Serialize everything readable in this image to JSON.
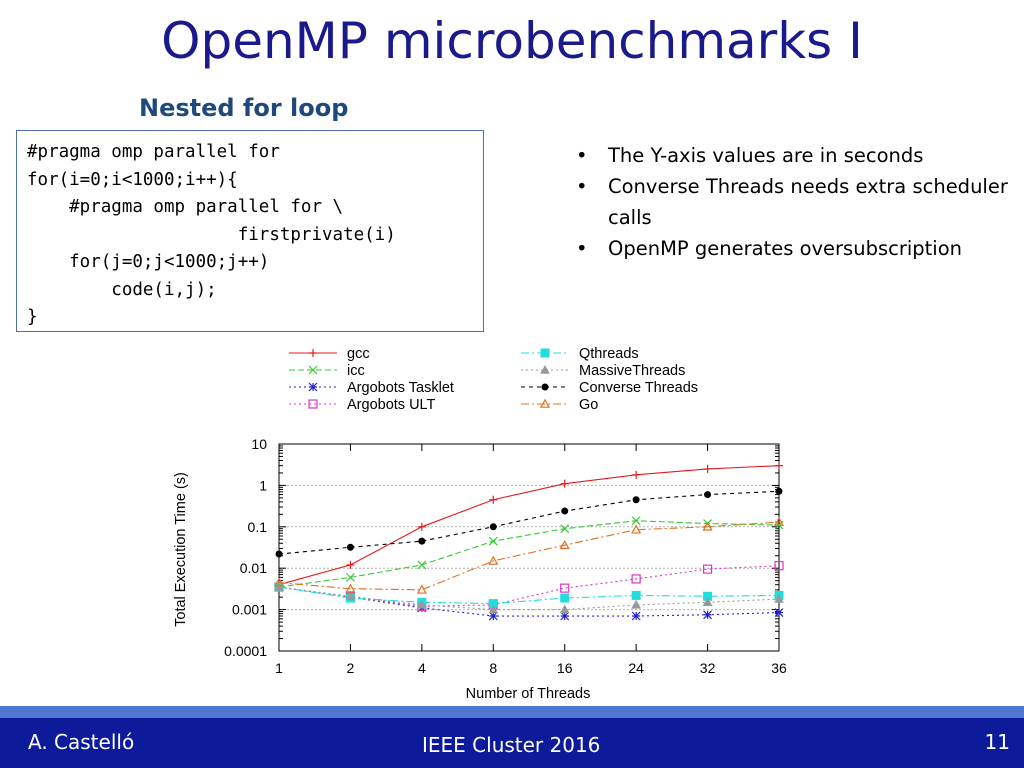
{
  "slide": {
    "title": "OpenMP microbenchmarks I",
    "subtitle": "Nested for loop",
    "code_lines": [
      "#pragma omp parallel for",
      "for(i=0;i<1000;i++){",
      "    #pragma omp parallel for \\",
      "                    firstprivate(i)",
      "    for(j=0;j<1000;j++)",
      "        code(i,j);",
      "}"
    ],
    "bullets": [
      "The Y-axis values are in seconds",
      "Converse Threads needs extra scheduler calls",
      "OpenMP generates oversubscription"
    ]
  },
  "footer": {
    "author": "A. Castelló",
    "conference": "IEEE Cluster 2016",
    "page": "11"
  },
  "chart_data": {
    "type": "line",
    "xlabel": "Number of Threads",
    "ylabel": "Total Execution Time (s)",
    "categories": [
      "1",
      "2",
      "4",
      "8",
      "16",
      "24",
      "32",
      "36"
    ],
    "yscale": "log",
    "ylim": [
      0.0001,
      10
    ],
    "yticks": [
      {
        "value": 10,
        "label": "10"
      },
      {
        "value": 1,
        "label": "1"
      },
      {
        "value": 0.1,
        "label": "0.1"
      },
      {
        "value": 0.01,
        "label": "0.01"
      },
      {
        "value": 0.001,
        "label": "0.001"
      },
      {
        "value": 0.0001,
        "label": "0.0001"
      }
    ],
    "grid": true,
    "legend_position": "top",
    "series": [
      {
        "name": "gcc",
        "color": "#e41a1c",
        "marker": "plus",
        "dash": "",
        "values": [
          0.004,
          0.012,
          0.1,
          0.45,
          1.1,
          1.8,
          2.5,
          3.0
        ]
      },
      {
        "name": "icc",
        "color": "#33cc33",
        "marker": "x",
        "dash": "6 3",
        "values": [
          0.0035,
          0.006,
          0.012,
          0.045,
          0.09,
          0.14,
          0.12,
          0.11
        ]
      },
      {
        "name": "Argobots Tasklet",
        "color": "#2222cc",
        "marker": "star",
        "dash": "2 3",
        "values": [
          0.0035,
          0.002,
          0.0011,
          0.0007,
          0.0007,
          0.0007,
          0.00075,
          0.00085
        ]
      },
      {
        "name": "Argobots ULT",
        "color": "#dd33cc",
        "marker": "square",
        "dash": "2 3",
        "values": [
          0.0035,
          0.002,
          0.0012,
          0.0013,
          0.0033,
          0.0055,
          0.0095,
          0.0115
        ]
      },
      {
        "name": "Qthreads",
        "color": "#22dddd",
        "marker": "fsquare",
        "dash": "8 3 2 3",
        "values": [
          0.0035,
          0.0019,
          0.0015,
          0.0014,
          0.0019,
          0.0022,
          0.0021,
          0.0022
        ]
      },
      {
        "name": "MassiveThreads",
        "color": "#999999",
        "marker": "triangle",
        "dash": "2 3",
        "values": [
          0.0035,
          0.0021,
          0.0013,
          0.001,
          0.001,
          0.0013,
          0.0015,
          0.0018
        ]
      },
      {
        "name": "Converse Threads",
        "color": "#000000",
        "marker": "circle",
        "dash": "4 4",
        "values": [
          0.022,
          0.032,
          0.045,
          0.1,
          0.24,
          0.45,
          0.6,
          0.72
        ]
      },
      {
        "name": "Go",
        "color": "#e07020",
        "marker": "otriangle",
        "dash": "8 3 2 3",
        "values": [
          0.0045,
          0.0032,
          0.003,
          0.015,
          0.036,
          0.085,
          0.1,
          0.13
        ]
      }
    ]
  }
}
